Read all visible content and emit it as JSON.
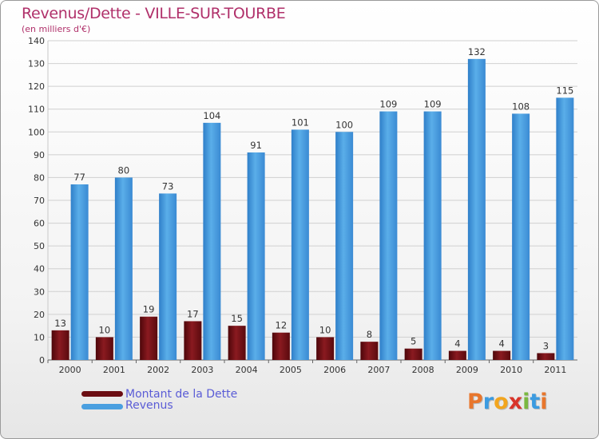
{
  "title": "Revenus/Dette - VILLE-SUR-TOURBE",
  "subtitle": "(en milliers d'€)",
  "legend": [
    {
      "label": "Montant de la Dette",
      "color": "#6b0d12"
    },
    {
      "label": "Revenus",
      "color": "#4a9fe0"
    }
  ],
  "logo": "Proxiti",
  "chart_data": {
    "type": "bar",
    "categories": [
      "2000",
      "2001",
      "2002",
      "2003",
      "2004",
      "2005",
      "2006",
      "2007",
      "2008",
      "2009",
      "2010",
      "2011"
    ],
    "series": [
      {
        "name": "Montant de la Dette",
        "values": [
          13,
          10,
          19,
          17,
          15,
          12,
          10,
          8,
          5,
          4,
          4,
          3
        ],
        "color": "#6b0d12"
      },
      {
        "name": "Revenus",
        "values": [
          77,
          80,
          73,
          104,
          91,
          101,
          100,
          109,
          109,
          132,
          108,
          115
        ],
        "color": "#4a9fe0"
      }
    ],
    "yticks": [
      0,
      10,
      20,
      30,
      40,
      50,
      60,
      70,
      80,
      90,
      100,
      110,
      120,
      130,
      140
    ],
    "ylim": [
      0,
      140
    ],
    "grid": true,
    "legend_position": "bottom-left"
  }
}
